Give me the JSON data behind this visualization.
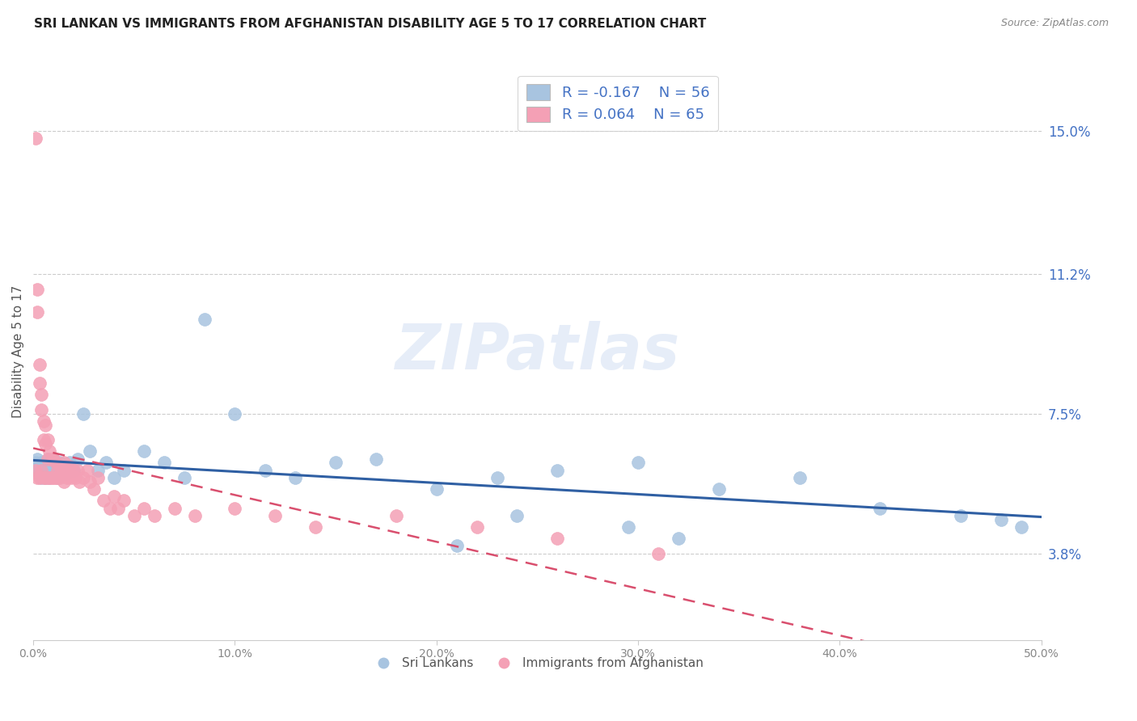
{
  "title": "SRI LANKAN VS IMMIGRANTS FROM AFGHANISTAN DISABILITY AGE 5 TO 17 CORRELATION CHART",
  "source": "Source: ZipAtlas.com",
  "ylabel": "Disability Age 5 to 17",
  "y_tick_labels": [
    "3.8%",
    "7.5%",
    "11.2%",
    "15.0%"
  ],
  "y_tick_values": [
    0.038,
    0.075,
    0.112,
    0.15
  ],
  "xmin": 0.0,
  "xmax": 0.5,
  "ymin": 0.015,
  "ymax": 0.168,
  "legend_sri_r": "R = -0.167",
  "legend_sri_n": "N = 56",
  "legend_afg_r": "R = 0.064",
  "legend_afg_n": "N = 65",
  "sri_color": "#a8c4e0",
  "afg_color": "#f4a0b5",
  "sri_line_color": "#2f5fa3",
  "afg_line_color": "#d94f6e",
  "watermark": "ZIPatlas",
  "sri_x": [
    0.001,
    0.002,
    0.002,
    0.003,
    0.003,
    0.004,
    0.004,
    0.005,
    0.005,
    0.006,
    0.006,
    0.007,
    0.007,
    0.008,
    0.008,
    0.009,
    0.01,
    0.01,
    0.011,
    0.012,
    0.013,
    0.014,
    0.015,
    0.016,
    0.018,
    0.02,
    0.022,
    0.025,
    0.028,
    0.032,
    0.036,
    0.04,
    0.045,
    0.055,
    0.065,
    0.075,
    0.085,
    0.1,
    0.115,
    0.13,
    0.15,
    0.17,
    0.2,
    0.23,
    0.26,
    0.3,
    0.34,
    0.38,
    0.42,
    0.46,
    0.48,
    0.49,
    0.295,
    0.32,
    0.24,
    0.21
  ],
  "sri_y": [
    0.062,
    0.06,
    0.063,
    0.059,
    0.061,
    0.058,
    0.062,
    0.06,
    0.061,
    0.059,
    0.058,
    0.063,
    0.06,
    0.061,
    0.058,
    0.06,
    0.059,
    0.063,
    0.06,
    0.058,
    0.062,
    0.06,
    0.061,
    0.059,
    0.062,
    0.06,
    0.063,
    0.075,
    0.065,
    0.06,
    0.062,
    0.058,
    0.06,
    0.065,
    0.062,
    0.058,
    0.1,
    0.075,
    0.06,
    0.058,
    0.062,
    0.063,
    0.055,
    0.058,
    0.06,
    0.062,
    0.055,
    0.058,
    0.05,
    0.048,
    0.047,
    0.045,
    0.045,
    0.042,
    0.048,
    0.04
  ],
  "afg_x": [
    0.001,
    0.001,
    0.002,
    0.002,
    0.002,
    0.003,
    0.003,
    0.003,
    0.004,
    0.004,
    0.004,
    0.005,
    0.005,
    0.005,
    0.006,
    0.006,
    0.006,
    0.007,
    0.007,
    0.007,
    0.008,
    0.008,
    0.009,
    0.009,
    0.01,
    0.01,
    0.011,
    0.011,
    0.012,
    0.012,
    0.013,
    0.013,
    0.014,
    0.015,
    0.015,
    0.016,
    0.017,
    0.018,
    0.019,
    0.02,
    0.021,
    0.022,
    0.023,
    0.025,
    0.027,
    0.028,
    0.03,
    0.032,
    0.035,
    0.038,
    0.04,
    0.042,
    0.045,
    0.05,
    0.055,
    0.06,
    0.07,
    0.08,
    0.1,
    0.12,
    0.14,
    0.18,
    0.22,
    0.26,
    0.31
  ],
  "afg_y": [
    0.148,
    0.06,
    0.108,
    0.102,
    0.058,
    0.088,
    0.083,
    0.058,
    0.08,
    0.076,
    0.06,
    0.073,
    0.068,
    0.058,
    0.072,
    0.067,
    0.058,
    0.068,
    0.063,
    0.058,
    0.065,
    0.058,
    0.063,
    0.058,
    0.063,
    0.058,
    0.062,
    0.058,
    0.06,
    0.058,
    0.061,
    0.058,
    0.06,
    0.062,
    0.057,
    0.06,
    0.058,
    0.061,
    0.058,
    0.06,
    0.058,
    0.06,
    0.057,
    0.058,
    0.06,
    0.057,
    0.055,
    0.058,
    0.052,
    0.05,
    0.053,
    0.05,
    0.052,
    0.048,
    0.05,
    0.048,
    0.05,
    0.048,
    0.05,
    0.048,
    0.045,
    0.048,
    0.045,
    0.042,
    0.038
  ]
}
